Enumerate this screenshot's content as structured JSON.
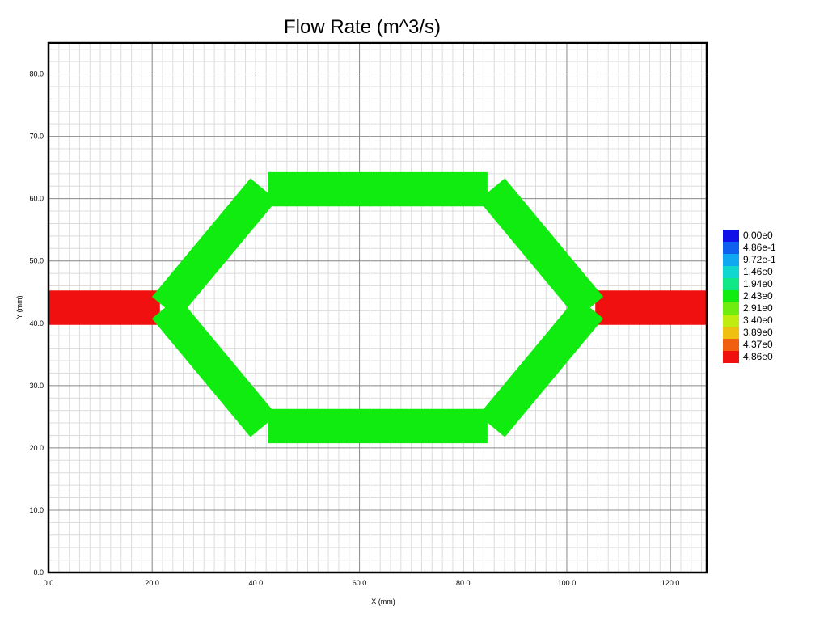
{
  "chart_data": {
    "type": "heatmap",
    "title": "Flow Rate (m^3/s)",
    "xlabel": "X (mm)",
    "ylabel": "Y (mm)",
    "xlim": [
      0,
      127
    ],
    "ylim": [
      0,
      85
    ],
    "xticks": [
      "0.0",
      "20.0",
      "40.0",
      "60.0",
      "80.0",
      "100.0",
      "120.0"
    ],
    "yticks": [
      "0.0",
      "10.0",
      "20.0",
      "30.0",
      "40.0",
      "50.0",
      "60.0",
      "70.0",
      "80.0"
    ],
    "major_grid_step": 20,
    "y_major_grid_step": 10,
    "minor_grid_step": 2,
    "grid": true,
    "legend_placement": "right",
    "legend": [
      {
        "label": "0.00e0",
        "color": "#1010e8"
      },
      {
        "label": "4.86e-1",
        "color": "#1060f0"
      },
      {
        "label": "9.72e-1",
        "color": "#10a8f0"
      },
      {
        "label": "1.46e0",
        "color": "#10d8d0"
      },
      {
        "label": "1.94e0",
        "color": "#10e888"
      },
      {
        "label": "2.43e0",
        "color": "#10ec10"
      },
      {
        "label": "2.91e0",
        "color": "#70ec10"
      },
      {
        "label": "3.40e0",
        "color": "#c0ec10"
      },
      {
        "label": "3.89e0",
        "color": "#f0c010"
      },
      {
        "label": "4.37e0",
        "color": "#f06010"
      },
      {
        "label": "4.86e0",
        "color": "#f01010"
      }
    ],
    "segments": [
      {
        "name": "inlet-channel",
        "from": [
          0,
          42.5
        ],
        "to": [
          21.5,
          42.5
        ],
        "width": 6,
        "value": 4.86,
        "color": "#f01010"
      },
      {
        "name": "outlet-channel",
        "from": [
          105.5,
          42.5
        ],
        "to": [
          127,
          42.5
        ],
        "width": 6,
        "value": 4.86,
        "color": "#f01010"
      },
      {
        "name": "upper-left-branch",
        "from": [
          22.5,
          42.5
        ],
        "to": [
          41.5,
          61.5
        ],
        "width": 6,
        "value": 2.43,
        "color": "#10ec10"
      },
      {
        "name": "top-channel",
        "from": [
          42.3,
          61.5
        ],
        "to": [
          84.7,
          61.5
        ],
        "width": 6,
        "value": 2.43,
        "color": "#10ec10"
      },
      {
        "name": "upper-right-branch",
        "from": [
          85.5,
          61.5
        ],
        "to": [
          104.5,
          42.5
        ],
        "width": 6,
        "value": 2.43,
        "color": "#10ec10"
      },
      {
        "name": "lower-left-branch",
        "from": [
          22.5,
          42.5
        ],
        "to": [
          41.5,
          23.5
        ],
        "width": 6,
        "value": 2.43,
        "color": "#10ec10"
      },
      {
        "name": "bottom-channel",
        "from": [
          42.3,
          23.5
        ],
        "to": [
          84.7,
          23.5
        ],
        "width": 6,
        "value": 2.43,
        "color": "#10ec10"
      },
      {
        "name": "lower-right-branch",
        "from": [
          85.5,
          23.5
        ],
        "to": [
          104.5,
          42.5
        ],
        "width": 6,
        "value": 2.43,
        "color": "#10ec10"
      }
    ]
  }
}
